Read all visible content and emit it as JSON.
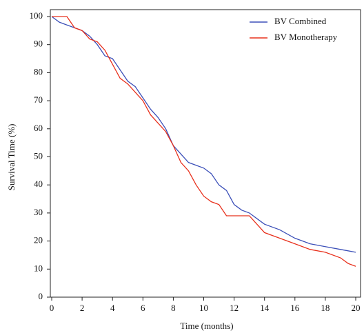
{
  "chart_data": {
    "type": "line",
    "xlabel": "Time (months)",
    "ylabel": "Survival Time (%)",
    "xlim": [
      0,
      20
    ],
    "xticks": [
      0,
      2,
      4,
      6,
      8,
      10,
      12,
      14,
      16,
      18,
      20
    ],
    "ylim": [
      0,
      100
    ],
    "yticks": [
      0,
      10,
      20,
      30,
      40,
      50,
      60,
      70,
      80,
      90,
      100
    ],
    "legend": "top-right",
    "series": [
      {
        "name": "BV Combined",
        "color": "#3b4fb8",
        "x": [
          0,
          0.5,
          1,
          1.5,
          2,
          2.5,
          3,
          3.5,
          4,
          4.5,
          5,
          5.5,
          6,
          6.5,
          7,
          7.5,
          8,
          8.5,
          9,
          9.5,
          10,
          10.5,
          11,
          11.5,
          12,
          12.5,
          13,
          13.5,
          14,
          15,
          16,
          17,
          18,
          19,
          20
        ],
        "values": [
          100,
          98,
          97,
          96,
          95,
          93,
          90,
          86,
          85,
          81,
          77,
          75,
          71,
          67,
          64,
          60,
          54,
          51,
          48,
          47,
          46,
          44,
          40,
          38,
          33,
          31,
          30,
          28,
          26,
          24,
          21,
          19,
          18,
          17,
          16
        ]
      },
      {
        "name": "BV Monotherapy",
        "color": "#e8301c",
        "x": [
          0,
          1,
          1.5,
          2,
          2.5,
          3,
          3.5,
          4,
          4.5,
          5,
          5.5,
          6,
          6.5,
          7,
          7.5,
          8,
          8.5,
          9,
          9.5,
          10,
          10.5,
          11,
          11.5,
          12,
          13,
          14,
          15,
          16,
          17,
          18,
          19,
          19.5,
          20
        ],
        "values": [
          100,
          100,
          96,
          95,
          92,
          91,
          88,
          83,
          78,
          76,
          73,
          70,
          65,
          62,
          59,
          54,
          48,
          45,
          40,
          36,
          34,
          33,
          29,
          29,
          29,
          23,
          21,
          19,
          17,
          16,
          14,
          12,
          11
        ]
      }
    ]
  }
}
